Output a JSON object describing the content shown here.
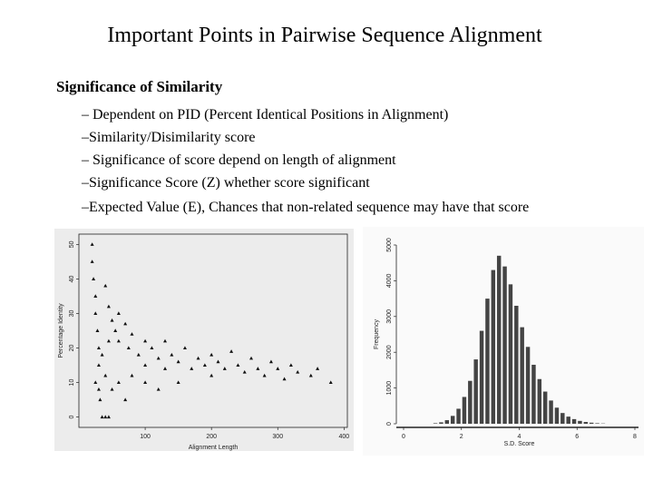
{
  "title": "Important Points in Pairwise Sequence Alignment",
  "heading": "Significance of Similarity",
  "bullets": [
    "– Dependent on PID (Percent Identical Positions in Alignment)",
    "–Similarity/Disimilarity score",
    "– Significance of score depend on length of alignment",
    "–Significance Score (Z) whether score significant",
    "–Expected Value (E), Chances that non-related sequence may have that score"
  ],
  "chart_data": [
    {
      "type": "scatter",
      "xlabel": "Alignment Length",
      "ylabel": "Percentage Identity",
      "xlim": [
        0,
        405
      ],
      "ylim": [
        -3,
        53
      ],
      "xticks": [
        100,
        200,
        300,
        400
      ],
      "yticks": [
        0,
        10,
        20,
        30,
        40,
        50
      ],
      "color": "#111111",
      "x": [
        20,
        20,
        22,
        25,
        25,
        28,
        30,
        30,
        30,
        32,
        35,
        40,
        45,
        40,
        45,
        50,
        55,
        60,
        60,
        70,
        75,
        80,
        90,
        100,
        100,
        110,
        120,
        130,
        130,
        140,
        150,
        160,
        170,
        180,
        190,
        200,
        200,
        210,
        220,
        230,
        240,
        250,
        260,
        270,
        280,
        290,
        300,
        310,
        320,
        330,
        350,
        360,
        380,
        25,
        40,
        50,
        60,
        70,
        35,
        45,
        80,
        100,
        120,
        150
      ],
      "y": [
        50,
        45,
        40,
        35,
        30,
        25,
        20,
        15,
        8,
        5,
        0,
        0,
        0,
        38,
        32,
        28,
        25,
        22,
        30,
        27,
        20,
        24,
        18,
        22,
        15,
        20,
        17,
        14,
        22,
        18,
        16,
        20,
        14,
        17,
        15,
        18,
        12,
        16,
        14,
        19,
        15,
        13,
        17,
        14,
        12,
        16,
        14,
        11,
        15,
        13,
        12,
        14,
        10,
        10,
        12,
        8,
        10,
        5,
        18,
        22,
        12,
        10,
        8,
        10
      ]
    },
    {
      "type": "histogram",
      "xlabel": "S.D. Score",
      "ylabel": "Frequency",
      "xlim": [
        0,
        8
      ],
      "ylim": [
        0,
        5000
      ],
      "xticks": [
        0,
        2,
        4,
        6,
        8
      ],
      "yticks": [
        0,
        1000,
        2000,
        3000,
        4000,
        5000
      ],
      "color": "#444444",
      "bins": [
        1.0,
        1.2,
        1.4,
        1.6,
        1.8,
        2.0,
        2.2,
        2.4,
        2.6,
        2.8,
        3.0,
        3.2,
        3.4,
        3.6,
        3.8,
        4.0,
        4.2,
        4.4,
        4.6,
        4.8,
        5.0,
        5.2,
        5.4,
        5.6,
        5.8,
        6.0,
        6.2,
        6.4,
        6.6,
        6.8,
        7.0
      ],
      "values": [
        15,
        40,
        100,
        220,
        420,
        750,
        1200,
        1800,
        2600,
        3500,
        4300,
        4700,
        4400,
        3900,
        3300,
        2700,
        2150,
        1650,
        1250,
        900,
        650,
        450,
        300,
        200,
        130,
        80,
        50,
        30,
        15,
        8
      ]
    }
  ]
}
